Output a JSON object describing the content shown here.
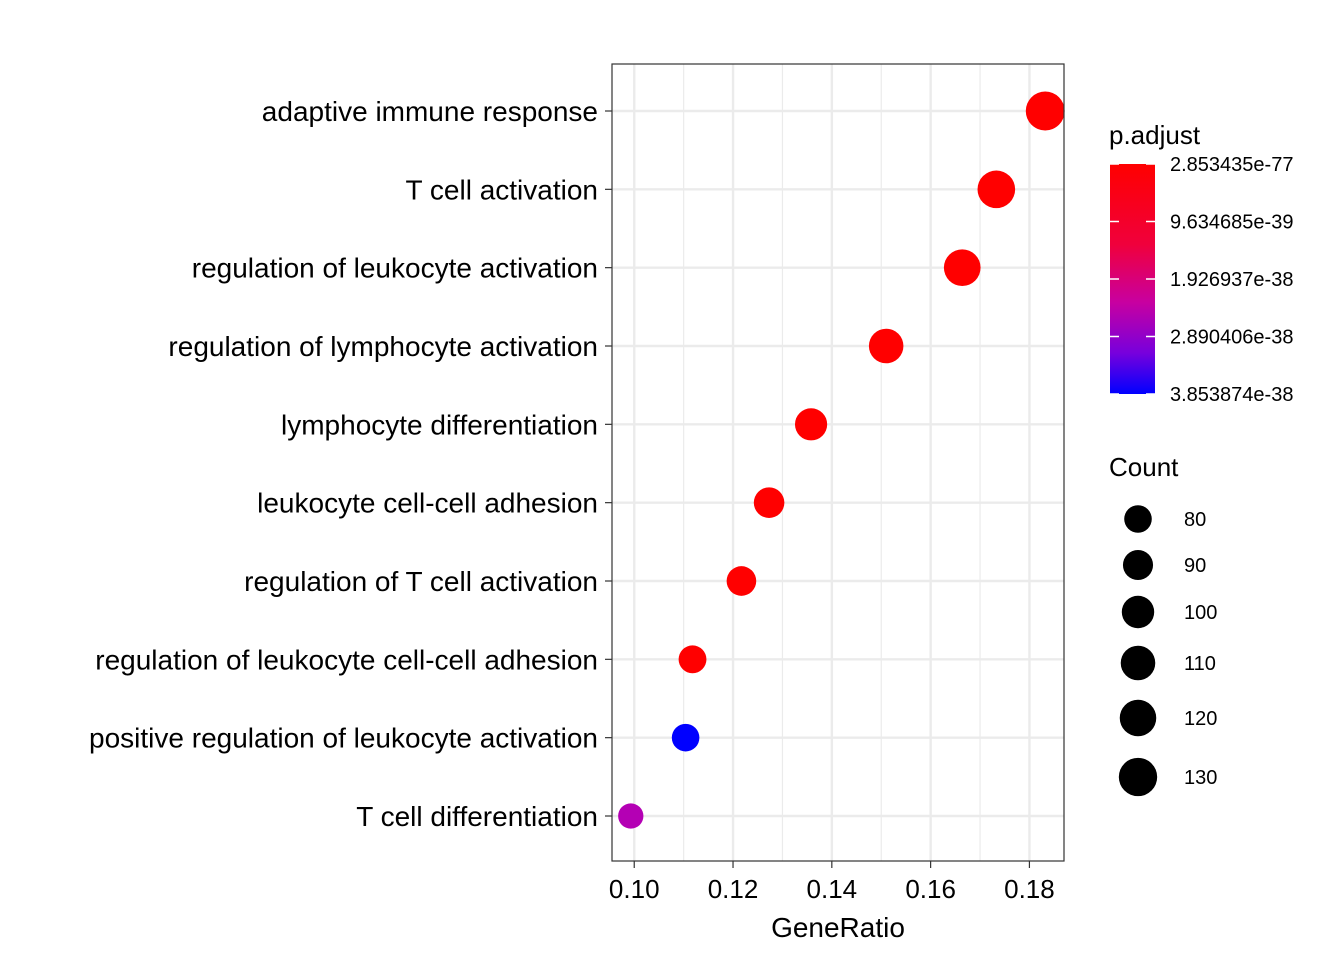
{
  "chart_data": {
    "type": "scatter",
    "xlabel": "GeneRatio",
    "ylabel": "",
    "xlim": [
      0.0955,
      0.187
    ],
    "x_ticks": [
      "0.10",
      "0.12",
      "0.14",
      "0.16",
      "0.18"
    ],
    "x_tick_values": [
      0.1,
      0.12,
      0.14,
      0.16,
      0.18
    ],
    "grid": true,
    "categories": [
      "adaptive immune response",
      "T cell activation",
      "regulation of leukocyte activation",
      "regulation of lymphocyte activation",
      "lymphocyte differentiation",
      "leukocyte cell-cell adhesion",
      "regulation of T cell activation",
      "regulation of leukocyte cell-cell adhesion",
      "positive regulation of leukocyte activation",
      "T cell differentiation"
    ],
    "points": [
      {
        "term": "adaptive immune response",
        "gene_ratio": 0.1832,
        "count": 133,
        "color": "#FF0000"
      },
      {
        "term": "T cell activation",
        "gene_ratio": 0.1733,
        "count": 126,
        "color": "#FF0000"
      },
      {
        "term": "regulation of leukocyte activation",
        "gene_ratio": 0.1664,
        "count": 121,
        "color": "#FF0000"
      },
      {
        "term": "regulation of lymphocyte activation",
        "gene_ratio": 0.151,
        "count": 110,
        "color": "#FF0000"
      },
      {
        "term": "lymphocyte differentiation",
        "gene_ratio": 0.1358,
        "count": 99,
        "color": "#FF0000"
      },
      {
        "term": "leukocyte cell-cell adhesion",
        "gene_ratio": 0.1273,
        "count": 92,
        "color": "#FF0000"
      },
      {
        "term": "regulation of T cell activation",
        "gene_ratio": 0.1217,
        "count": 88,
        "color": "#FF0000"
      },
      {
        "term": "regulation of leukocyte cell-cell adhesion",
        "gene_ratio": 0.1118,
        "count": 81,
        "color": "#FF0000"
      },
      {
        "term": "positive regulation of leukocyte activation",
        "gene_ratio": 0.1104,
        "count": 80,
        "color": "#0000FF"
      },
      {
        "term": "T cell differentiation",
        "gene_ratio": 0.0993,
        "count": 72,
        "color": "#B400B4"
      }
    ],
    "color_legend": {
      "title": "p.adjust",
      "labels": [
        "2.853435e-77",
        "9.634685e-39",
        "1.926937e-38",
        "2.890406e-38",
        "3.853874e-38"
      ],
      "gradient_top": "#FF0000",
      "gradient_bottom": "#0000FF"
    },
    "size_legend": {
      "title": "Count",
      "values": [
        80,
        90,
        100,
        110,
        120,
        130
      ],
      "labels": [
        "80",
        "90",
        "100",
        "110",
        "120",
        "130"
      ]
    }
  }
}
